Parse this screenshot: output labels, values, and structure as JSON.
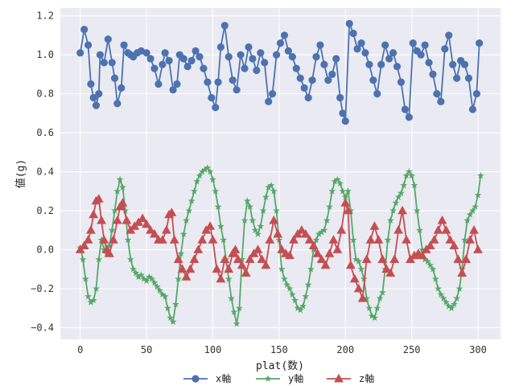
{
  "chart_data": {
    "type": "line",
    "xlabel": "plat(数)",
    "ylabel": "値(g)",
    "xlim": [
      -15,
      317
    ],
    "ylim": [
      -0.46,
      1.24
    ],
    "xticks": [
      0,
      50,
      100,
      150,
      200,
      250,
      300
    ],
    "yticks": [
      -0.4,
      -0.2,
      0.0,
      0.2,
      0.4,
      0.6,
      0.8,
      1.0,
      1.2
    ],
    "ytick_labels": [
      "−0.4",
      "−0.2",
      "0.0",
      "0.2",
      "0.4",
      "0.6",
      "0.8",
      "1.0",
      "1.2"
    ],
    "grid": true,
    "legend_position": "bottom-center",
    "series": [
      {
        "name": "x軸",
        "color": "#4c72b0",
        "marker": "circle",
        "x": [
          0,
          3,
          6,
          8,
          10,
          12,
          14,
          15,
          18,
          21,
          24,
          26,
          28,
          31,
          33,
          36,
          38,
          40,
          43,
          46,
          50,
          53,
          56,
          59,
          62,
          64,
          67,
          70,
          73,
          75,
          78,
          81,
          84,
          87,
          90,
          93,
          96,
          99,
          102,
          104,
          106,
          109,
          112,
          115,
          118,
          121,
          124,
          127,
          130,
          133,
          136,
          139,
          142,
          145,
          148,
          151,
          154,
          157,
          160,
          163,
          166,
          169,
          172,
          175,
          178,
          181,
          184,
          187,
          190,
          193,
          196,
          198,
          200,
          203,
          206,
          209,
          212,
          215,
          218,
          221,
          224,
          227,
          230,
          233,
          236,
          239,
          242,
          245,
          248,
          251,
          254,
          257,
          260,
          263,
          266,
          269,
          272,
          275,
          278,
          281,
          284,
          287,
          290,
          293,
          296,
          299,
          301
        ],
        "y": [
          1.01,
          1.13,
          1.05,
          0.85,
          0.78,
          0.74,
          0.8,
          1.0,
          0.96,
          1.08,
          0.96,
          0.88,
          0.75,
          0.83,
          1.05,
          1.01,
          1.0,
          0.99,
          1.01,
          1.02,
          1.01,
          0.98,
          0.93,
          0.85,
          0.95,
          1.01,
          0.97,
          0.82,
          0.85,
          1.0,
          0.98,
          0.94,
          0.97,
          1.02,
          0.99,
          0.93,
          0.86,
          0.78,
          0.73,
          0.86,
          1.04,
          1.15,
          0.99,
          0.87,
          0.82,
          1.0,
          0.93,
          1.04,
          0.98,
          0.92,
          1.01,
          0.96,
          0.76,
          0.8,
          1.0,
          1.06,
          1.1,
          1.02,
          0.99,
          0.93,
          0.88,
          0.83,
          0.78,
          0.87,
          0.99,
          1.05,
          0.95,
          0.87,
          0.9,
          0.98,
          0.78,
          0.7,
          0.66,
          1.16,
          1.11,
          1.03,
          1.06,
          1.01,
          0.95,
          0.87,
          0.8,
          0.95,
          1.05,
          0.98,
          1.01,
          0.94,
          0.86,
          0.72,
          0.68,
          1.06,
          1.02,
          1.0,
          1.05,
          0.96,
          0.9,
          0.8,
          0.76,
          1.03,
          1.1,
          0.95,
          0.88,
          0.97,
          0.95,
          0.88,
          0.72,
          0.8,
          1.06
        ]
      },
      {
        "name": "y軸",
        "color": "#55a868",
        "marker": "star",
        "x": [
          0,
          2,
          4,
          6,
          8,
          10,
          12,
          14,
          16,
          18,
          20,
          22,
          24,
          26,
          28,
          30,
          32,
          34,
          36,
          38,
          40,
          42,
          44,
          46,
          48,
          50,
          52,
          54,
          56,
          58,
          60,
          62,
          64,
          66,
          68,
          70,
          72,
          74,
          76,
          78,
          80,
          82,
          84,
          86,
          88,
          90,
          92,
          94,
          96,
          98,
          100,
          102,
          104,
          106,
          108,
          110,
          112,
          114,
          116,
          118,
          120,
          122,
          124,
          126,
          128,
          130,
          132,
          134,
          136,
          138,
          140,
          142,
          144,
          146,
          148,
          150,
          152,
          154,
          156,
          158,
          160,
          162,
          164,
          166,
          168,
          170,
          172,
          174,
          176,
          178,
          180,
          182,
          184,
          186,
          188,
          190,
          192,
          194,
          196,
          198,
          200,
          202,
          204,
          206,
          208,
          210,
          212,
          214,
          216,
          218,
          220,
          222,
          224,
          226,
          228,
          230,
          232,
          234,
          236,
          238,
          240,
          242,
          244,
          246,
          248,
          250,
          252,
          254,
          256,
          258,
          260,
          262,
          264,
          266,
          268,
          270,
          272,
          274,
          276,
          278,
          280,
          282,
          284,
          286,
          288,
          290,
          292,
          294,
          296,
          298,
          300,
          302
        ],
        "y": [
          0.01,
          -0.05,
          -0.15,
          -0.24,
          -0.27,
          -0.26,
          -0.2,
          -0.05,
          0.05,
          0.0,
          -0.02,
          0.02,
          0.1,
          0.2,
          0.3,
          0.36,
          0.32,
          0.2,
          0.05,
          -0.05,
          -0.1,
          -0.12,
          -0.14,
          -0.13,
          -0.15,
          -0.16,
          -0.14,
          -0.15,
          -0.17,
          -0.19,
          -0.21,
          -0.23,
          -0.24,
          -0.3,
          -0.35,
          -0.37,
          -0.28,
          -0.15,
          -0.02,
          0.08,
          0.15,
          0.2,
          0.25,
          0.3,
          0.35,
          0.38,
          0.4,
          0.41,
          0.42,
          0.4,
          0.36,
          0.3,
          0.22,
          0.12,
          0.05,
          -0.05,
          -0.15,
          -0.25,
          -0.32,
          -0.38,
          -0.3,
          -0.05,
          0.15,
          0.25,
          0.22,
          0.15,
          0.1,
          0.08,
          0.12,
          0.2,
          0.27,
          0.32,
          0.33,
          0.3,
          0.2,
          0.05,
          -0.1,
          -0.15,
          -0.18,
          -0.2,
          -0.23,
          -0.26,
          -0.3,
          -0.31,
          -0.29,
          -0.24,
          -0.18,
          -0.1,
          0.0,
          0.05,
          0.08,
          0.09,
          0.1,
          0.15,
          0.22,
          0.3,
          0.35,
          0.36,
          0.34,
          0.3,
          0.27,
          0.3,
          0.2,
          0.05,
          -0.05,
          -0.06,
          -0.1,
          -0.15,
          -0.25,
          -0.3,
          -0.34,
          -0.35,
          -0.3,
          -0.25,
          -0.22,
          -0.1,
          0.05,
          0.15,
          0.2,
          0.24,
          0.27,
          0.29,
          0.33,
          0.38,
          0.4,
          0.38,
          0.33,
          0.2,
          0.1,
          0.0,
          -0.05,
          -0.06,
          -0.08,
          -0.1,
          -0.15,
          -0.2,
          -0.23,
          -0.25,
          -0.27,
          -0.29,
          -0.3,
          -0.28,
          -0.25,
          -0.2,
          -0.1,
          0.05,
          0.15,
          0.18,
          0.2,
          0.22,
          0.28,
          0.38
        ]
      },
      {
        "name": "z軸",
        "color": "#c44e52",
        "marker": "triangle",
        "x": [
          0,
          3,
          6,
          8,
          10,
          12,
          14,
          16,
          18,
          20,
          22,
          25,
          28,
          30,
          32,
          35,
          38,
          41,
          44,
          47,
          50,
          53,
          56,
          59,
          62,
          65,
          67,
          69,
          71,
          74,
          77,
          80,
          83,
          86,
          89,
          92,
          95,
          98,
          100,
          103,
          106,
          109,
          112,
          115,
          117,
          119,
          122,
          125,
          128,
          131,
          134,
          137,
          140,
          143,
          146,
          149,
          152,
          155,
          158,
          161,
          164,
          167,
          170,
          173,
          176,
          179,
          182,
          185,
          188,
          191,
          194,
          197,
          200,
          202,
          204,
          207,
          210,
          213,
          216,
          219,
          222,
          225,
          228,
          231,
          234,
          237,
          240,
          243,
          246,
          249,
          252,
          255,
          258,
          261,
          264,
          267,
          270,
          273,
          276,
          279,
          282,
          285,
          288,
          291,
          294,
          297,
          300
        ],
        "y": [
          0.0,
          0.02,
          0.05,
          0.1,
          0.18,
          0.25,
          0.26,
          0.15,
          0.05,
          0.0,
          -0.02,
          0.05,
          0.15,
          0.22,
          0.24,
          0.15,
          0.1,
          0.12,
          0.14,
          0.16,
          0.13,
          0.1,
          0.08,
          0.05,
          0.05,
          0.1,
          0.18,
          0.19,
          0.05,
          -0.05,
          -0.1,
          -0.14,
          -0.1,
          -0.05,
          0.0,
          0.05,
          0.1,
          0.12,
          0.05,
          -0.1,
          -0.15,
          -0.05,
          -0.1,
          -0.02,
          0.0,
          -0.05,
          -0.08,
          -0.12,
          -0.05,
          -0.02,
          0.0,
          -0.05,
          -0.08,
          0.05,
          0.15,
          0.08,
          0.0,
          -0.02,
          -0.03,
          0.05,
          0.08,
          0.1,
          0.08,
          0.05,
          0.02,
          -0.02,
          -0.05,
          -0.08,
          -0.02,
          0.05,
          0.0,
          0.1,
          0.24,
          0.2,
          -0.08,
          -0.15,
          -0.2,
          -0.25,
          -0.05,
          0.05,
          0.12,
          0.05,
          -0.05,
          -0.1,
          -0.12,
          -0.05,
          0.1,
          0.2,
          0.05,
          -0.05,
          -0.03,
          -0.02,
          -0.03,
          0.0,
          0.02,
          0.05,
          0.1,
          0.15,
          0.1,
          0.05,
          0.02,
          -0.05,
          -0.12,
          -0.05,
          0.05,
          0.1,
          0.0
        ]
      }
    ]
  }
}
